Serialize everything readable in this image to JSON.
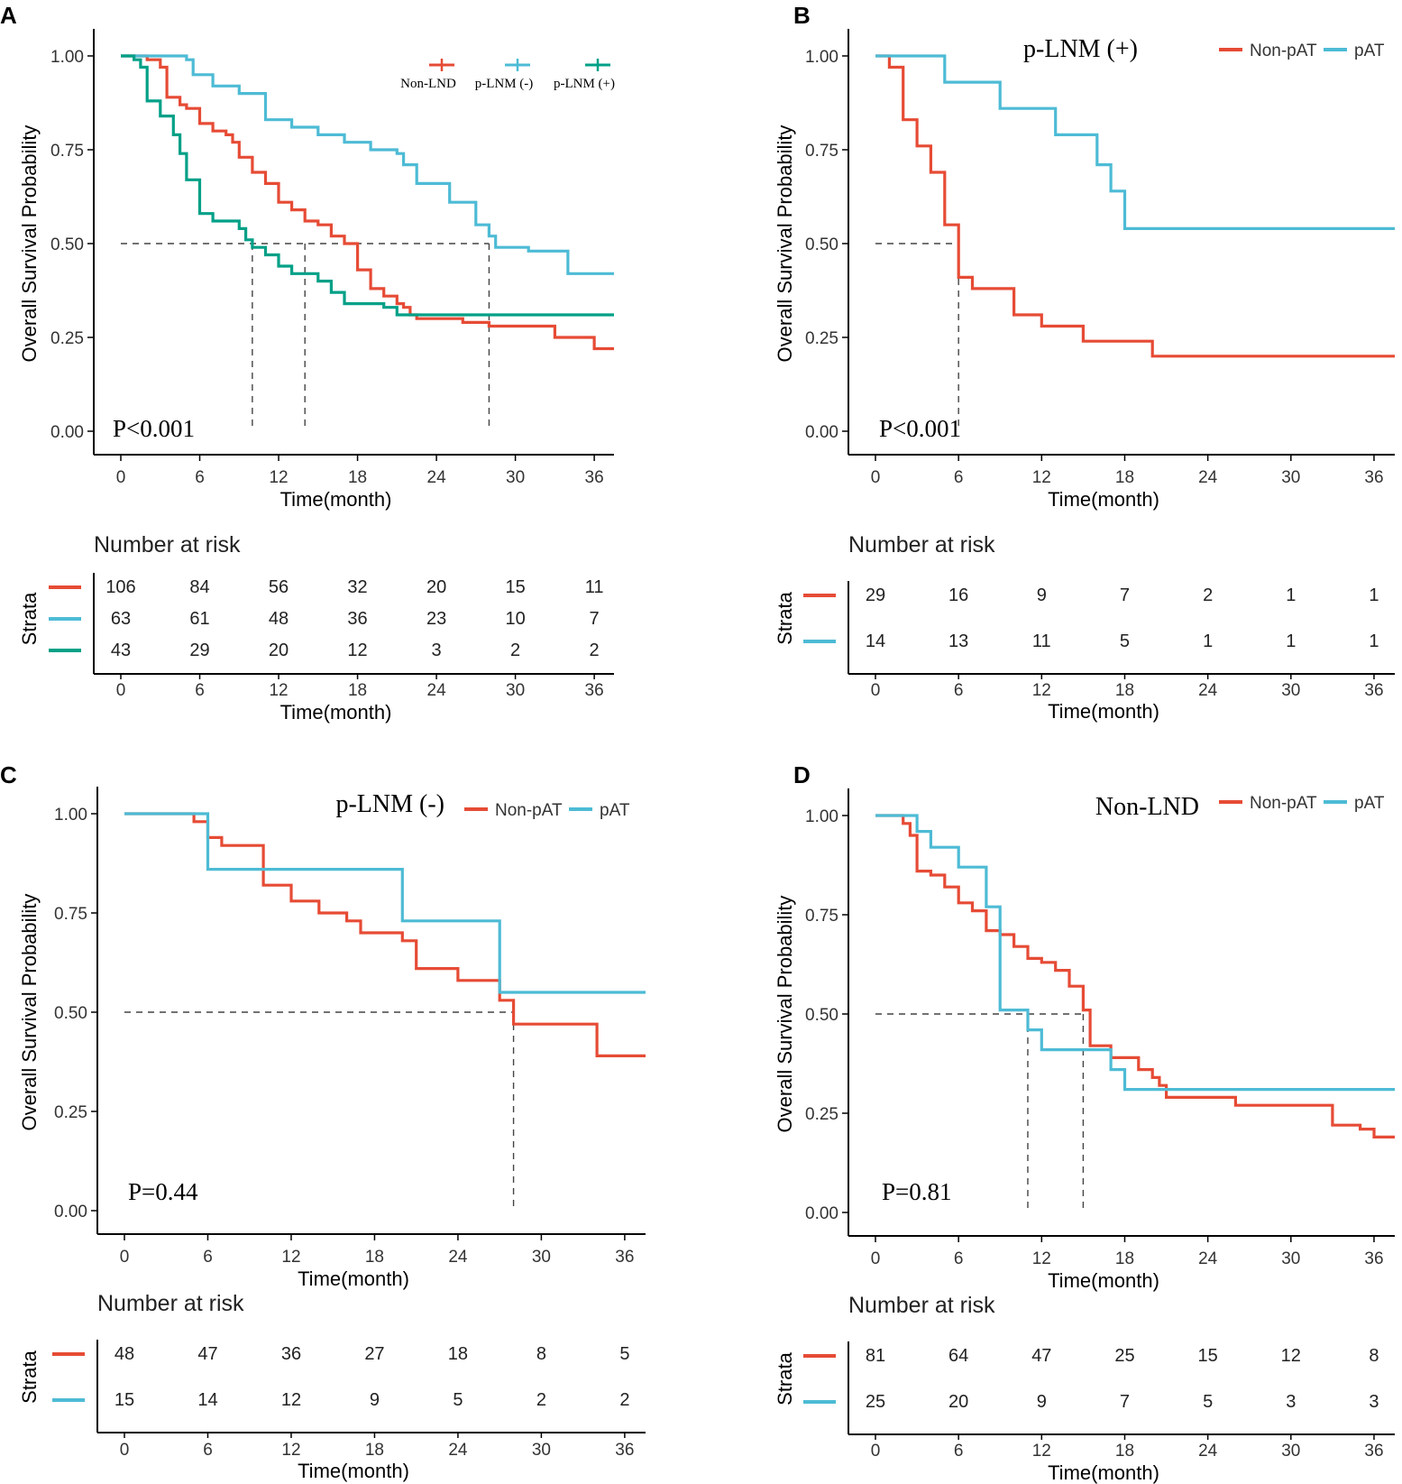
{
  "colors": {
    "red": "#E64B35",
    "blue": "#4DBBD5",
    "green": "#00A087",
    "axis": "#000000",
    "ticktext": "#333333",
    "ref": "#444444"
  },
  "labels": {
    "y_axis": "Overall Survival Probability",
    "x_axis": "Time(month)",
    "risk_title": "Number at risk",
    "strata": "Strata"
  },
  "chart_data": [
    {
      "panel": "A",
      "type": "line",
      "title": "",
      "xlabel": "Time(month)",
      "ylabel": "Overall Survival Probability",
      "xlim": [
        0,
        37.5
      ],
      "ylim": [
        0,
        1
      ],
      "x_ticks": [
        0,
        6,
        12,
        18,
        24,
        30,
        36
      ],
      "y_ticks": [
        "0.00",
        "0.25",
        "0.50",
        "0.75",
        "1.00"
      ],
      "p_value": "P<0.001",
      "legend_style": "markers",
      "legend_position": "top-right",
      "median_lines": [
        10,
        14,
        28
      ],
      "series": [
        {
          "name": "Non-LND",
          "color": "red",
          "points": [
            [
              0,
              1
            ],
            [
              2,
              0.99
            ],
            [
              3,
              0.97
            ],
            [
              3.5,
              0.89
            ],
            [
              4.5,
              0.87
            ],
            [
              5,
              0.86
            ],
            [
              6,
              0.82
            ],
            [
              7,
              0.8
            ],
            [
              8,
              0.79
            ],
            [
              8.5,
              0.77
            ],
            [
              9,
              0.73
            ],
            [
              10,
              0.69
            ],
            [
              11,
              0.66
            ],
            [
              12,
              0.61
            ],
            [
              13,
              0.59
            ],
            [
              14,
              0.56
            ],
            [
              15,
              0.55
            ],
            [
              16,
              0.52
            ],
            [
              17,
              0.5
            ],
            [
              18,
              0.43
            ],
            [
              19,
              0.38
            ],
            [
              20,
              0.36
            ],
            [
              21,
              0.34
            ],
            [
              21.5,
              0.33
            ],
            [
              22,
              0.31
            ],
            [
              22.5,
              0.3
            ],
            [
              26,
              0.29
            ],
            [
              28,
              0.28
            ],
            [
              33,
              0.25
            ],
            [
              36,
              0.22
            ],
            [
              37.5,
              0.22
            ]
          ]
        },
        {
          "name": "p-LNM (-)",
          "color": "blue",
          "points": [
            [
              0,
              1
            ],
            [
              5,
              0.99
            ],
            [
              5.5,
              0.95
            ],
            [
              7,
              0.92
            ],
            [
              9,
              0.9
            ],
            [
              11,
              0.83
            ],
            [
              13,
              0.81
            ],
            [
              15,
              0.79
            ],
            [
              17,
              0.77
            ],
            [
              19,
              0.75
            ],
            [
              21,
              0.74
            ],
            [
              21.5,
              0.71
            ],
            [
              22.5,
              0.66
            ],
            [
              25,
              0.61
            ],
            [
              27,
              0.55
            ],
            [
              28,
              0.52
            ],
            [
              28.5,
              0.49
            ],
            [
              31,
              0.48
            ],
            [
              34,
              0.42
            ],
            [
              37.5,
              0.42
            ]
          ]
        },
        {
          "name": "p-LNM (+)",
          "color": "green",
          "points": [
            [
              0,
              1
            ],
            [
              1,
              0.99
            ],
            [
              1.5,
              0.97
            ],
            [
              2,
              0.88
            ],
            [
              3,
              0.84
            ],
            [
              4,
              0.79
            ],
            [
              4.5,
              0.74
            ],
            [
              5,
              0.67
            ],
            [
              6,
              0.58
            ],
            [
              7,
              0.56
            ],
            [
              9,
              0.54
            ],
            [
              9.5,
              0.51
            ],
            [
              10,
              0.49
            ],
            [
              11,
              0.47
            ],
            [
              12,
              0.44
            ],
            [
              13,
              0.42
            ],
            [
              15,
              0.4
            ],
            [
              16,
              0.37
            ],
            [
              17,
              0.34
            ],
            [
              20,
              0.33
            ],
            [
              21,
              0.31
            ],
            [
              37.5,
              0.31
            ]
          ]
        }
      ],
      "risk_table": {
        "times": [
          0,
          6,
          12,
          18,
          24,
          30,
          36
        ],
        "rows": [
          [
            "106",
            "84",
            "56",
            "32",
            "20",
            "15",
            "11"
          ],
          [
            "63",
            "61",
            "48",
            "36",
            "23",
            "10",
            "7"
          ],
          [
            "43",
            "29",
            "20",
            "12",
            "3",
            "2",
            "2"
          ]
        ]
      }
    },
    {
      "panel": "B",
      "type": "line",
      "title": "p-LNM (+)",
      "xlabel": "Time(month)",
      "ylabel": "Overall Survival Probability",
      "xlim": [
        0,
        37.5
      ],
      "ylim": [
        0,
        1
      ],
      "x_ticks": [
        0,
        6,
        12,
        18,
        24,
        30,
        36
      ],
      "y_ticks": [
        "0.00",
        "0.25",
        "0.50",
        "0.75",
        "1.00"
      ],
      "p_value": "P<0.001",
      "legend_style": "lines",
      "legend_position": "top-right",
      "median_lines": [
        6
      ],
      "series": [
        {
          "name": "Non-pAT",
          "color": "red",
          "points": [
            [
              0,
              1
            ],
            [
              1,
              0.97
            ],
            [
              2,
              0.83
            ],
            [
              3,
              0.76
            ],
            [
              4,
              0.69
            ],
            [
              5,
              0.55
            ],
            [
              6,
              0.41
            ],
            [
              7,
              0.38
            ],
            [
              10,
              0.31
            ],
            [
              12,
              0.28
            ],
            [
              15,
              0.24
            ],
            [
              20,
              0.2
            ],
            [
              37.5,
              0.2
            ]
          ]
        },
        {
          "name": "pAT",
          "color": "blue",
          "points": [
            [
              0,
              1
            ],
            [
              5,
              0.93
            ],
            [
              9,
              0.86
            ],
            [
              13,
              0.79
            ],
            [
              16,
              0.71
            ],
            [
              17,
              0.64
            ],
            [
              18,
              0.54
            ],
            [
              37.5,
              0.54
            ]
          ]
        }
      ],
      "risk_table": {
        "times": [
          0,
          6,
          12,
          18,
          24,
          30,
          36
        ],
        "rows": [
          [
            "29",
            "16",
            "9",
            "7",
            "2",
            "1",
            "1"
          ],
          [
            "14",
            "13",
            "11",
            "5",
            "1",
            "1",
            "1"
          ]
        ]
      }
    },
    {
      "panel": "C",
      "type": "line",
      "title": "p-LNM (-)",
      "xlabel": "Time(month)",
      "ylabel": "Overall Survival Probability",
      "xlim": [
        0,
        37.5
      ],
      "ylim": [
        0,
        1
      ],
      "x_ticks": [
        0,
        6,
        12,
        18,
        24,
        30,
        36
      ],
      "y_ticks": [
        "0.00",
        "0.25",
        "0.50",
        "0.75",
        "1.00"
      ],
      "p_value": "P=0.44",
      "legend_style": "lines",
      "legend_position": "top-right",
      "median_lines": [
        28
      ],
      "series": [
        {
          "name": "Non-pAT",
          "color": "red",
          "points": [
            [
              0,
              1
            ],
            [
              5,
              0.98
            ],
            [
              6,
              0.94
            ],
            [
              7,
              0.92
            ],
            [
              10,
              0.82
            ],
            [
              12,
              0.78
            ],
            [
              14,
              0.75
            ],
            [
              16,
              0.73
            ],
            [
              17,
              0.7
            ],
            [
              20,
              0.68
            ],
            [
              21,
              0.61
            ],
            [
              24,
              0.58
            ],
            [
              27,
              0.53
            ],
            [
              28,
              0.47
            ],
            [
              34,
              0.39
            ],
            [
              37.5,
              0.39
            ]
          ]
        },
        {
          "name": "pAT",
          "color": "blue",
          "points": [
            [
              0,
              1
            ],
            [
              6,
              0.86
            ],
            [
              20,
              0.73
            ],
            [
              27,
              0.55
            ],
            [
              37.5,
              0.55
            ]
          ]
        }
      ],
      "risk_table": {
        "times": [
          0,
          6,
          12,
          18,
          24,
          30,
          36
        ],
        "rows": [
          [
            "48",
            "47",
            "36",
            "27",
            "18",
            "8",
            "5"
          ],
          [
            "15",
            "14",
            "12",
            "9",
            "5",
            "2",
            "2"
          ]
        ]
      }
    },
    {
      "panel": "D",
      "type": "line",
      "title": "Non-LND",
      "xlabel": "Time(month)",
      "ylabel": "Overall Survival Probability",
      "xlim": [
        0,
        37.5
      ],
      "ylim": [
        0,
        1
      ],
      "x_ticks": [
        0,
        6,
        12,
        18,
        24,
        30,
        36
      ],
      "y_ticks": [
        "0.00",
        "0.25",
        "0.50",
        "0.75",
        "1.00"
      ],
      "p_value": "P=0.81",
      "legend_style": "lines",
      "legend_position": "top-right",
      "median_lines": [
        11,
        15
      ],
      "series": [
        {
          "name": "Non-pAT",
          "color": "red",
          "points": [
            [
              0,
              1
            ],
            [
              2,
              0.98
            ],
            [
              2.5,
              0.95
            ],
            [
              3,
              0.86
            ],
            [
              4,
              0.85
            ],
            [
              5,
              0.82
            ],
            [
              6,
              0.78
            ],
            [
              7,
              0.76
            ],
            [
              8,
              0.71
            ],
            [
              9,
              0.7
            ],
            [
              10,
              0.67
            ],
            [
              11,
              0.64
            ],
            [
              12,
              0.63
            ],
            [
              13,
              0.61
            ],
            [
              14,
              0.57
            ],
            [
              15,
              0.51
            ],
            [
              15.5,
              0.42
            ],
            [
              17,
              0.39
            ],
            [
              19,
              0.36
            ],
            [
              20,
              0.34
            ],
            [
              20.5,
              0.32
            ],
            [
              21,
              0.29
            ],
            [
              26,
              0.27
            ],
            [
              33,
              0.22
            ],
            [
              35,
              0.21
            ],
            [
              36,
              0.19
            ],
            [
              37.5,
              0.19
            ]
          ]
        },
        {
          "name": "pAT",
          "color": "blue",
          "points": [
            [
              0,
              1
            ],
            [
              1,
              1
            ],
            [
              2,
              1
            ],
            [
              3,
              0.96
            ],
            [
              4,
              0.92
            ],
            [
              6,
              0.87
            ],
            [
              8,
              0.77
            ],
            [
              9,
              0.51
            ],
            [
              11,
              0.46
            ],
            [
              12,
              0.41
            ],
            [
              17,
              0.36
            ],
            [
              18,
              0.31
            ],
            [
              37.5,
              0.31
            ]
          ]
        }
      ],
      "risk_table": {
        "times": [
          0,
          6,
          12,
          18,
          24,
          30,
          36
        ],
        "rows": [
          [
            "81",
            "64",
            "47",
            "25",
            "15",
            "12",
            "8"
          ],
          [
            "25",
            "20",
            "9",
            "7",
            "5",
            "3",
            "3"
          ]
        ]
      }
    }
  ]
}
